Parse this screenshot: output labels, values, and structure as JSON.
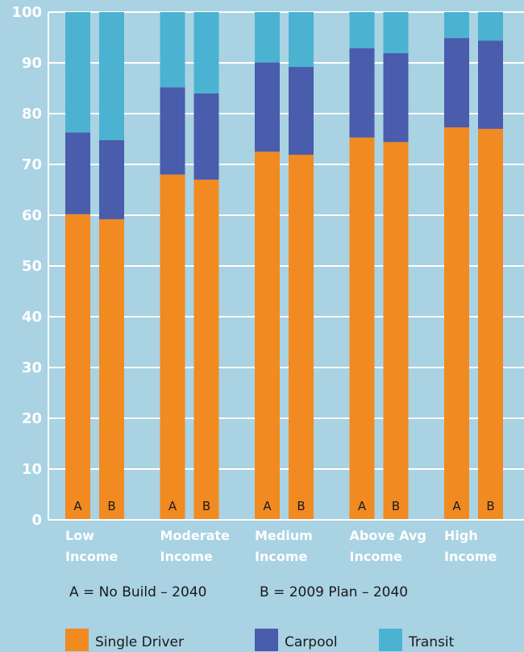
{
  "chart_data": {
    "type": "bar",
    "stacked": true,
    "title": "",
    "xlabel": "",
    "ylabel": "",
    "ylim": [
      0,
      100
    ],
    "y_ticks": [
      0,
      10,
      20,
      30,
      40,
      50,
      60,
      70,
      80,
      90,
      100
    ],
    "grid": true,
    "categories": [
      {
        "label_line1": "Low",
        "label_line2": "Income"
      },
      {
        "label_line1": "Moderate",
        "label_line2": "Income"
      },
      {
        "label_line1": "Medium",
        "label_line2": "Income"
      },
      {
        "label_line1": "Above Avg",
        "label_line2": "Income"
      },
      {
        "label_line1": "High",
        "label_line2": "Income"
      }
    ],
    "bar_labels": [
      "A",
      "B"
    ],
    "series": [
      {
        "name": "Single Driver",
        "color": "#f18a21",
        "values": [
          [
            60.2,
            59.2
          ],
          [
            68,
            67
          ],
          [
            72.5,
            71.9
          ],
          [
            75.3,
            74.4
          ],
          [
            77.3,
            77
          ]
        ]
      },
      {
        "name": "Carpool",
        "color": "#4a5cac",
        "values": [
          [
            16.1,
            15.6
          ],
          [
            17.2,
            17
          ],
          [
            17.6,
            17.3
          ],
          [
            17.6,
            17.5
          ],
          [
            17.6,
            17.4
          ]
        ]
      },
      {
        "name": "Transit",
        "color": "#4bb3d1",
        "values": [
          [
            23.7,
            25.2
          ],
          [
            14.8,
            16
          ],
          [
            9.9,
            10.8
          ],
          [
            7.1,
            8.1
          ],
          [
            5.1,
            5.6
          ]
        ]
      }
    ],
    "notes": [
      "A = No Build – 2040",
      "B = 2009 Plan – 2040"
    ],
    "legend_position": "bottom"
  }
}
